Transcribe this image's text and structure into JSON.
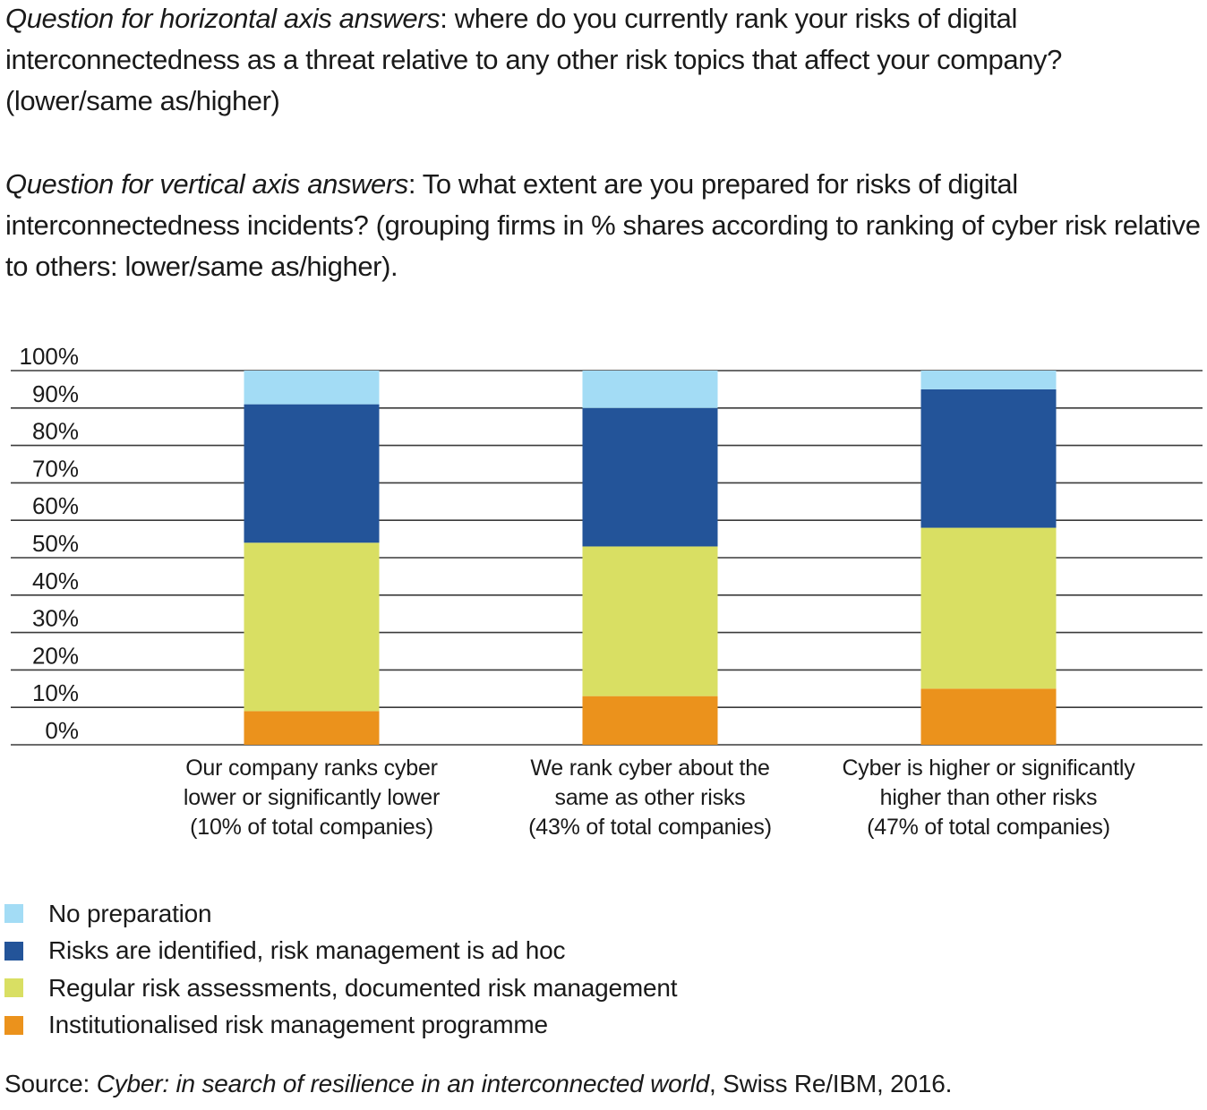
{
  "intro": {
    "q1_label": "Question for horizontal axis answers",
    "q1_text": ": where do you currently rank your risks of digital interconnectedness as a threat relative to any other risk topics that affect your company? (lower/same as/higher)",
    "q2_label": "Question for vertical axis answers",
    "q2_text": ": To what extent are you prepared for risks of digital interconnectedness incidents? (grouping firms in % shares according to ranking of cyber risk relative to others: lower/same as/higher)."
  },
  "chart_data": {
    "type": "bar",
    "stacked": true,
    "title": "",
    "xlabel": "",
    "ylabel": "",
    "ylim": [
      0,
      100
    ],
    "yticks": [
      "0%",
      "10%",
      "20%",
      "30%",
      "40%",
      "50%",
      "60%",
      "70%",
      "80%",
      "90%",
      "100%"
    ],
    "grid": true,
    "legend_position": "bottom-left",
    "categories": [
      "Our company ranks cyber lower or significantly lower (10% of total companies)",
      "We rank cyber about the same as other risks (43% of total companies)",
      "Cyber is higher or significantly higher than other risks (47% of total companies)"
    ],
    "category_lines": [
      [
        "Our company ranks cyber",
        "lower or significantly lower",
        "(10% of total companies)"
      ],
      [
        "We rank cyber about the",
        "same as other risks",
        "(43% of total companies)"
      ],
      [
        "Cyber is higher or significantly",
        "higher than other risks",
        "(47% of total companies)"
      ]
    ],
    "series": [
      {
        "name": "Institutionalised risk management programme",
        "color": "#EB921C",
        "values": [
          9,
          13,
          15
        ]
      },
      {
        "name": "Regular risk assessments, documented risk management",
        "color": "#D9DF63",
        "values": [
          45,
          40,
          43
        ]
      },
      {
        "name": "Risks are identified, risk management is ad hoc",
        "color": "#235499",
        "values": [
          37,
          37,
          37
        ]
      },
      {
        "name": "No preparation",
        "color": "#A3DCF5",
        "values": [
          9,
          10,
          5
        ]
      }
    ]
  },
  "legend": [
    {
      "label": "No preparation",
      "color": "#A3DCF5"
    },
    {
      "label": "Risks are identified, risk management is ad hoc",
      "color": "#235499"
    },
    {
      "label": "Regular risk assessments, documented risk management",
      "color": "#D9DF63"
    },
    {
      "label": "Institutionalised risk management programme",
      "color": "#EB921C"
    }
  ],
  "source": {
    "prefix": "Source: ",
    "title": "Cyber: in search of resilience in an interconnected world",
    "suffix": ", Swiss Re/IBM, 2016."
  }
}
